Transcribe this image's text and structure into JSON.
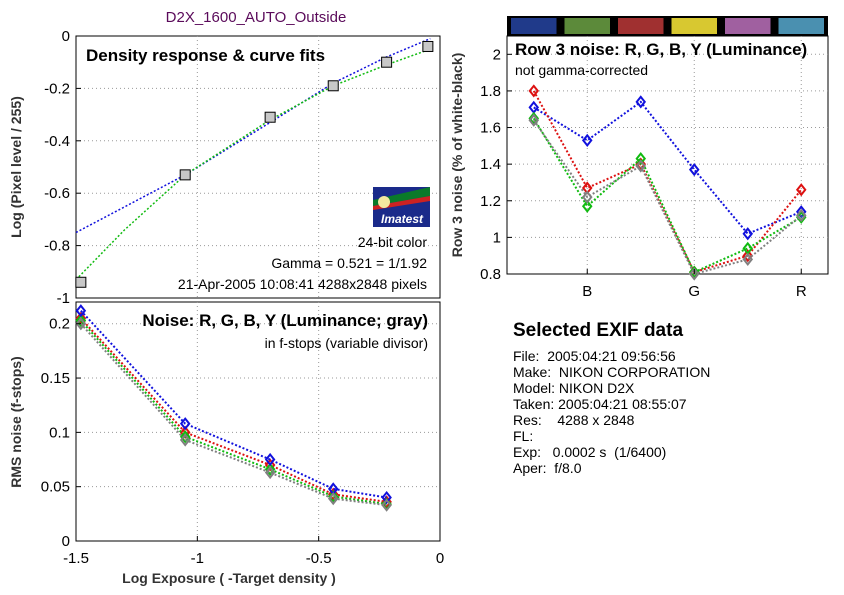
{
  "header": {
    "title": "D2X_1600_AUTO_Outside",
    "title_color": "#5a0a5a"
  },
  "colors": {
    "red": "#dd1111",
    "green": "#11bb11",
    "blue": "#1111dd",
    "gray": "#808080"
  },
  "logo": {
    "text": "Imatest",
    "icon": "imatest-logo"
  },
  "panel1": {
    "title": "Density response & curve fits",
    "info": [
      "24-bit color",
      "Gamma = 0.521 = 1/1.92",
      "21-Apr-2005 10:08:41   4288x2848 pixels"
    ]
  },
  "panel2": {
    "title": "Noise: R, G, B, Y (Luminance; gray)",
    "subtitle": "in f-stops (variable divisor)"
  },
  "panel3": {
    "title": "Row 3 noise: R, G, B, Y (Luminance)",
    "subtitle": "not gamma-corrected",
    "swatches": [
      "#203a8a",
      "#5c8a3a",
      "#a03030",
      "#d8c830",
      "#a060a0",
      "#4a90b0"
    ]
  },
  "exif": {
    "title": "Selected EXIF data",
    "lines": [
      "File:  2005:04:21 09:56:56",
      "Make:  NIKON CORPORATION",
      "Model: NIKON D2X",
      "Taken: 2005:04:21 08:55:07",
      "Res:    4288 x 2848",
      "FL:",
      "Exp:   0.0002 s  (1/6400)",
      "Aper:  f/8.0"
    ]
  },
  "chart_data": [
    {
      "type": "scatter",
      "title": "Density response & curve fits",
      "xlabel": "",
      "ylabel": "Log (Pixel level / 255)",
      "xlim": [
        -1.5,
        0
      ],
      "ylim": [
        -1,
        0
      ],
      "xticks": [],
      "yticks": [
        0,
        -0.2,
        -0.4,
        -0.6,
        -0.8,
        -1
      ],
      "ytick_labels": [
        "0",
        "-0.2",
        "-0.4",
        "-0.6",
        "-0.8",
        "-1"
      ],
      "grid": true,
      "points": [
        {
          "x": -1.48,
          "y": -0.94
        },
        {
          "x": -1.05,
          "y": -0.53
        },
        {
          "x": -0.7,
          "y": -0.31
        },
        {
          "x": -0.44,
          "y": -0.19
        },
        {
          "x": -0.22,
          "y": -0.1
        },
        {
          "x": -0.05,
          "y": -0.04
        }
      ],
      "fit_blue": [
        {
          "x": -1.5,
          "y": -0.75
        },
        {
          "x": -1.05,
          "y": -0.53
        },
        {
          "x": -0.7,
          "y": -0.33
        },
        {
          "x": -0.44,
          "y": -0.18
        },
        {
          "x": -0.22,
          "y": -0.08
        },
        {
          "x": -0.04,
          "y": -0.01
        }
      ],
      "fit_green": [
        {
          "x": -1.5,
          "y": -0.93
        },
        {
          "x": -1.3,
          "y": -0.74
        },
        {
          "x": -1.05,
          "y": -0.53
        },
        {
          "x": -0.7,
          "y": -0.32
        },
        {
          "x": -0.44,
          "y": -0.19
        },
        {
          "x": -0.22,
          "y": -0.11
        },
        {
          "x": -0.04,
          "y": -0.05
        }
      ]
    },
    {
      "type": "line",
      "title": "Noise: R, G, B, Y (Luminance; gray)",
      "xlabel": "Log Exposure ( -Target density )",
      "ylabel": "RMS noise (f-stops)",
      "xlim": [
        -1.5,
        0
      ],
      "ylim": [
        0,
        0.22
      ],
      "xticks": [
        -1.5,
        -1,
        -0.5,
        0
      ],
      "xtick_labels": [
        "-1.5",
        "-1",
        "-0.5",
        "0"
      ],
      "yticks": [
        0,
        0.05,
        0.1,
        0.15,
        0.2
      ],
      "ytick_labels": [
        "0",
        "0.05",
        "0.1",
        "0.15",
        "0.2"
      ],
      "grid": true,
      "x": [
        -1.48,
        -1.05,
        -0.7,
        -0.44,
        -0.22
      ],
      "series": [
        {
          "color": "red",
          "values": [
            0.205,
            0.1,
            0.07,
            0.043,
            0.036
          ]
        },
        {
          "color": "green",
          "values": [
            0.203,
            0.096,
            0.066,
            0.041,
            0.034
          ]
        },
        {
          "color": "blue",
          "values": [
            0.212,
            0.108,
            0.075,
            0.048,
            0.04
          ]
        },
        {
          "color": "gray",
          "values": [
            0.2,
            0.093,
            0.063,
            0.039,
            0.033
          ]
        }
      ]
    },
    {
      "type": "line",
      "title": "Row 3 noise: R, G, B, Y (Luminance)",
      "xlabel": "",
      "ylabel": "Row 3 noise (% of white-black)",
      "xlim": [
        0.5,
        6.5
      ],
      "ylim": [
        0.8,
        2.1
      ],
      "xticks": [
        2,
        4,
        6
      ],
      "xtick_labels": [
        "B",
        "G",
        "R"
      ],
      "yticks": [
        0.8,
        1,
        1.2,
        1.4,
        1.6,
        1.8,
        2
      ],
      "ytick_labels": [
        "0.8",
        "1",
        "1.2",
        "1.4",
        "1.6",
        "1.8",
        "2"
      ],
      "grid": true,
      "x": [
        1,
        2,
        3,
        4,
        5,
        6
      ],
      "series": [
        {
          "color": "blue",
          "values": [
            1.71,
            1.53,
            1.74,
            1.37,
            1.02,
            1.14
          ]
        },
        {
          "color": "red",
          "values": [
            1.8,
            1.27,
            1.4,
            0.81,
            0.9,
            1.26
          ]
        },
        {
          "color": "green",
          "values": [
            1.65,
            1.17,
            1.43,
            0.81,
            0.94,
            1.11
          ]
        },
        {
          "color": "gray",
          "values": [
            1.64,
            1.22,
            1.39,
            0.8,
            0.88,
            1.12
          ]
        }
      ]
    }
  ]
}
